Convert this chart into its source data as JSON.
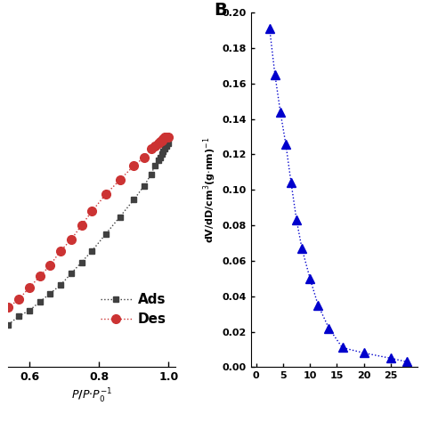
{
  "panel_A": {
    "ads_x": [
      0.54,
      0.57,
      0.6,
      0.63,
      0.66,
      0.69,
      0.72,
      0.75,
      0.78,
      0.82,
      0.86,
      0.9,
      0.93,
      0.95,
      0.96,
      0.97,
      0.975,
      0.98,
      0.985,
      0.99,
      0.995,
      1.0
    ],
    "ads_y": [
      100,
      103,
      105,
      108,
      111,
      114,
      118,
      122,
      126,
      132,
      138,
      144,
      149,
      153,
      156,
      158,
      159,
      160,
      161,
      162,
      163,
      164
    ],
    "des_x": [
      0.54,
      0.57,
      0.6,
      0.63,
      0.66,
      0.69,
      0.72,
      0.75,
      0.78,
      0.82,
      0.86,
      0.9,
      0.93,
      0.95,
      0.96,
      0.97,
      0.975,
      0.98,
      0.985,
      0.99,
      0.995,
      1.0
    ],
    "des_y": [
      106,
      109,
      113,
      117,
      121,
      126,
      130,
      135,
      140,
      146,
      151,
      156,
      159,
      162,
      163,
      164,
      164.5,
      165,
      165.5,
      166,
      166,
      166
    ],
    "xlim": [
      0.54,
      1.02
    ],
    "ylim": [
      85,
      210
    ],
    "xticks": [
      0.6,
      0.8,
      1.0
    ],
    "ads_color": "#404040",
    "des_color": "#cc3333",
    "legend_labels": [
      "Ads",
      "Des"
    ]
  },
  "panel_B": {
    "x": [
      2.5,
      3.5,
      4.5,
      5.5,
      6.5,
      7.5,
      8.5,
      10.0,
      11.5,
      13.5,
      16.0,
      20.0,
      25.0,
      28.0
    ],
    "y": [
      0.191,
      0.165,
      0.144,
      0.126,
      0.104,
      0.083,
      0.067,
      0.05,
      0.035,
      0.022,
      0.011,
      0.008,
      0.005,
      0.003
    ],
    "xlim": [
      -1,
      30
    ],
    "ylim": [
      0.0,
      0.2
    ],
    "xticks": [
      0,
      5,
      10,
      15,
      20,
      25
    ],
    "yticks": [
      0.0,
      0.02,
      0.04,
      0.06,
      0.08,
      0.1,
      0.12,
      0.14,
      0.16,
      0.18,
      0.2
    ],
    "color": "#0000cc",
    "label": "B"
  }
}
